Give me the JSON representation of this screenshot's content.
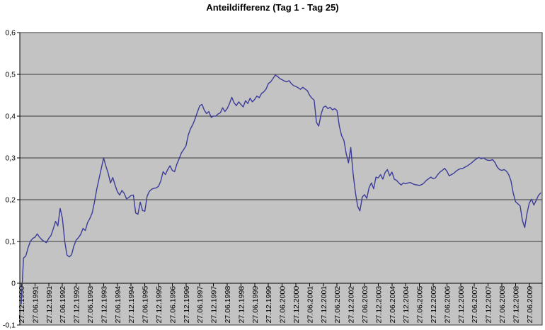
{
  "chart_data": {
    "type": "line",
    "title": "Anteildifferenz (Tag 1 - Tag 25)",
    "xlabel": "",
    "ylabel": "",
    "ylim": [
      -0.1,
      0.6
    ],
    "grid": "horizontal",
    "legend": "none",
    "x_label_rotation": -90,
    "points_per_tick": 6,
    "x_tick_labels": [
      "27.12.1990",
      "27.06.1991",
      "27.12.1991",
      "27.06.1992",
      "27.12.1992",
      "27.06.1993",
      "27.12.1993",
      "27.06.1994",
      "27.12.1994",
      "27.06.1995",
      "27.12.1995",
      "27.06.1996",
      "27.12.1996",
      "27.06.1997",
      "27.12.1997",
      "27.06.1998",
      "27.12.1998",
      "27.06.1999",
      "27.12.1999",
      "27.06.2000",
      "27.12.2000",
      "27.06.2001",
      "27.12.2001",
      "27.06.2002",
      "27.12.2002",
      "27.06.2003",
      "27.12.2003",
      "27.06.2004",
      "27.12.2004",
      "27.06.2005",
      "27.12.2005",
      "27.06.2006",
      "27.12.2006",
      "27.06.2007",
      "27.12.2007",
      "27.06.2008",
      "27.12.2008",
      "27.06.2009"
    ],
    "y_tick_labels": [
      "0,6",
      "0,5",
      "0,4",
      "0,3",
      "0,2",
      "0,1",
      "0",
      "-0,1"
    ],
    "y_tick_values": [
      0.6,
      0.5,
      0.4,
      0.3,
      0.2,
      0.1,
      0,
      -0.1
    ],
    "series": [
      {
        "name": "Anteildifferenz (Tag 1 - Tag 25)",
        "color": "#3B3B99",
        "values": [
          -0.05,
          0.06,
          0.065,
          0.085,
          0.1,
          0.107,
          0.11,
          0.118,
          0.11,
          0.104,
          0.1,
          0.097,
          0.107,
          0.114,
          0.13,
          0.148,
          0.137,
          0.179,
          0.155,
          0.1,
          0.067,
          0.063,
          0.068,
          0.089,
          0.103,
          0.109,
          0.117,
          0.131,
          0.126,
          0.145,
          0.155,
          0.168,
          0.194,
          0.225,
          0.25,
          0.275,
          0.3,
          0.28,
          0.263,
          0.24,
          0.253,
          0.235,
          0.219,
          0.211,
          0.222,
          0.215,
          0.202,
          0.205,
          0.21,
          0.211,
          0.168,
          0.165,
          0.194,
          0.174,
          0.172,
          0.208,
          0.22,
          0.225,
          0.227,
          0.228,
          0.232,
          0.245,
          0.267,
          0.26,
          0.272,
          0.281,
          0.27,
          0.267,
          0.285,
          0.298,
          0.312,
          0.32,
          0.329,
          0.355,
          0.37,
          0.38,
          0.394,
          0.41,
          0.425,
          0.428,
          0.414,
          0.406,
          0.411,
          0.397,
          0.4,
          0.4,
          0.405,
          0.408,
          0.42,
          0.411,
          0.418,
          0.43,
          0.445,
          0.432,
          0.425,
          0.434,
          0.428,
          0.422,
          0.437,
          0.43,
          0.443,
          0.434,
          0.44,
          0.448,
          0.444,
          0.454,
          0.458,
          0.465,
          0.478,
          0.482,
          0.49,
          0.498,
          0.495,
          0.49,
          0.487,
          0.484,
          0.482,
          0.485,
          0.478,
          0.473,
          0.471,
          0.468,
          0.464,
          0.469,
          0.465,
          0.461,
          0.45,
          0.443,
          0.438,
          0.385,
          0.376,
          0.404,
          0.421,
          0.424,
          0.418,
          0.421,
          0.415,
          0.418,
          0.413,
          0.376,
          0.353,
          0.342,
          0.31,
          0.288,
          0.325,
          0.263,
          0.218,
          0.184,
          0.173,
          0.206,
          0.212,
          0.203,
          0.229,
          0.24,
          0.226,
          0.254,
          0.252,
          0.26,
          0.249,
          0.265,
          0.272,
          0.257,
          0.266,
          0.249,
          0.246,
          0.24,
          0.235,
          0.24,
          0.238,
          0.24,
          0.241,
          0.238,
          0.236,
          0.235,
          0.234,
          0.236,
          0.24,
          0.246,
          0.25,
          0.254,
          0.25,
          0.252,
          0.26,
          0.266,
          0.27,
          0.275,
          0.268,
          0.257,
          0.26,
          0.263,
          0.268,
          0.272,
          0.274,
          0.275,
          0.278,
          0.281,
          0.285,
          0.289,
          0.294,
          0.298,
          0.301,
          0.298,
          0.3,
          0.296,
          0.294,
          0.294,
          0.296,
          0.289,
          0.278,
          0.272,
          0.27,
          0.272,
          0.268,
          0.26,
          0.245,
          0.215,
          0.195,
          0.19,
          0.185,
          0.15,
          0.133,
          0.167,
          0.192,
          0.201,
          0.187,
          0.198,
          0.21,
          0.216
        ]
      }
    ],
    "colors": {
      "page_background": "#FFFFFF",
      "plot_background": "#C3C3C3",
      "gridline": "#3A3A3A",
      "axis": "#000000",
      "text": "#000000"
    }
  }
}
